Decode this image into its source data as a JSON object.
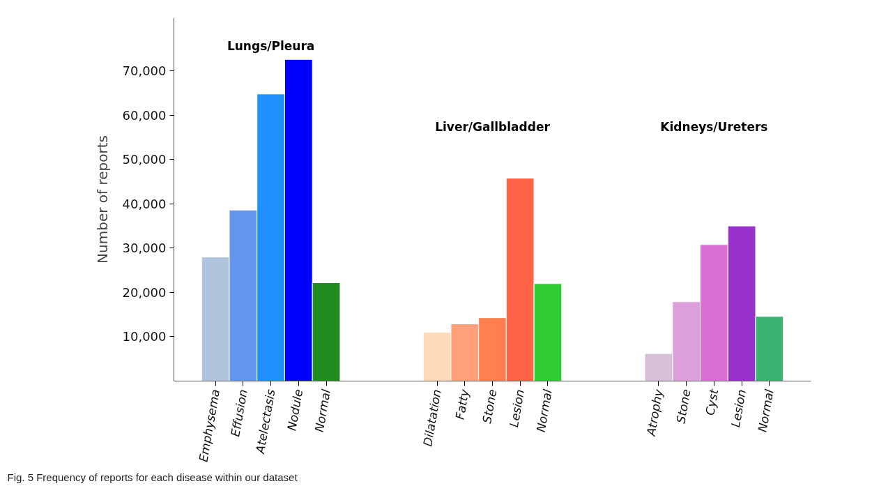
{
  "chart_data": {
    "type": "bar",
    "ylabel": "Number of reports",
    "categories": [
      "Emphysema",
      "Effusion",
      "Atelectasis",
      "Nodule",
      "Normal",
      null,
      null,
      null,
      "Dilatation",
      "Fatty",
      "Stone",
      "Lesion",
      "Normal",
      null,
      null,
      null,
      "Atrophy",
      "Stone",
      "Cyst",
      "Lesion",
      "Normal"
    ],
    "values": [
      28000,
      38600,
      64800,
      72600,
      22200,
      null,
      null,
      null,
      11000,
      12900,
      14300,
      45800,
      22000,
      null,
      null,
      null,
      6200,
      17900,
      30800,
      35000,
      14600
    ],
    "colors": [
      "#b0c4de",
      "#6495ed",
      "#1e90ff",
      "#0000ff",
      "#228b22",
      null,
      null,
      null,
      "#ffdab9",
      "#ffa07a",
      "#ff7f50",
      "#ff6347",
      "#32cd32",
      null,
      null,
      null,
      "#d8bfd8",
      "#dda0dd",
      "#da70d6",
      "#9932cc",
      "#3cb371"
    ],
    "ylim": [
      0,
      82000
    ],
    "yticks": [
      {
        "value": 10000,
        "label": "10,000"
      },
      {
        "value": 20000,
        "label": "20,000"
      },
      {
        "value": 30000,
        "label": "30,000"
      },
      {
        "value": 40000,
        "label": "40,000"
      },
      {
        "value": 50000,
        "label": "50,000"
      },
      {
        "value": 60000,
        "label": "60,000"
      },
      {
        "value": 70000,
        "label": "70,000"
      }
    ],
    "grid": false,
    "annotations": [
      "Lungs/Pleura",
      "Liver/Gallbladder",
      "Kidneys/Ureters",
      "Fig. 5 Frequency of reports for each disease within our dataset"
    ]
  }
}
